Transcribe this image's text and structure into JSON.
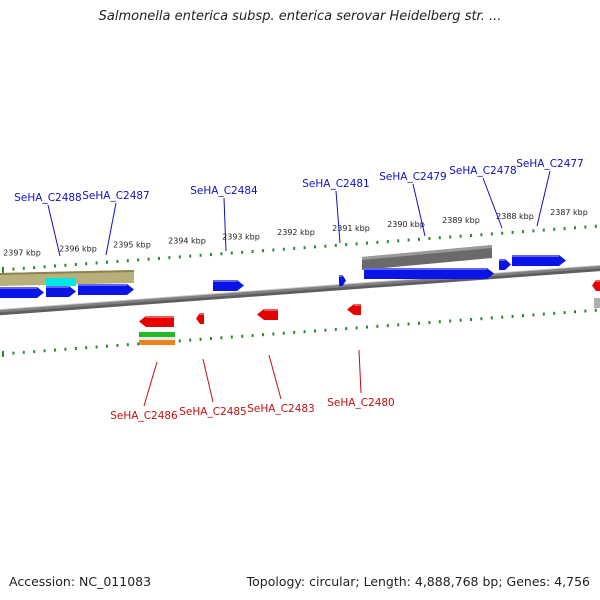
{
  "title": "Salmonella enterica subsp. enterica serovar Heidelberg str. ...",
  "accession": "Accession: NC_011083",
  "summary": "Topology: circular; Length: 4,888,768 bp; Genes: 4,756",
  "colors": {
    "forward_gene": "#0a14e6",
    "reverse_gene": "#e60000",
    "forward_label": "#1010c0",
    "reverse_label": "#c01010",
    "tick": "#2a8a2a",
    "backbone": "#808080"
  },
  "ticks": [
    {
      "label": "2397 kbp",
      "value": 2397
    },
    {
      "label": "2396 kbp",
      "value": 2396
    },
    {
      "label": "2395 kbp",
      "value": 2395
    },
    {
      "label": "2394 kbp",
      "value": 2394
    },
    {
      "label": "2393 kbp",
      "value": 2393
    },
    {
      "label": "2392 kbp",
      "value": 2392
    },
    {
      "label": "2391 kbp",
      "value": 2391
    },
    {
      "label": "2390 kbp",
      "value": 2390
    },
    {
      "label": "2389 kbp",
      "value": 2389
    },
    {
      "label": "2388 kbp",
      "value": 2388
    },
    {
      "label": "2387 kbp",
      "value": 2387
    }
  ],
  "forward_genes": [
    {
      "name": "SeHA_C2488"
    },
    {
      "name": "SeHA_C2487"
    },
    {
      "name": "SeHA_C2484"
    },
    {
      "name": "SeHA_C2481"
    },
    {
      "name": "SeHA_C2479"
    },
    {
      "name": "SeHA_C2478"
    },
    {
      "name": "SeHA_C2477"
    }
  ],
  "reverse_genes": [
    {
      "name": "SeHA_C2486"
    },
    {
      "name": "SeHA_C2485"
    },
    {
      "name": "SeHA_C2483"
    },
    {
      "name": "SeHA_C2480"
    }
  ]
}
